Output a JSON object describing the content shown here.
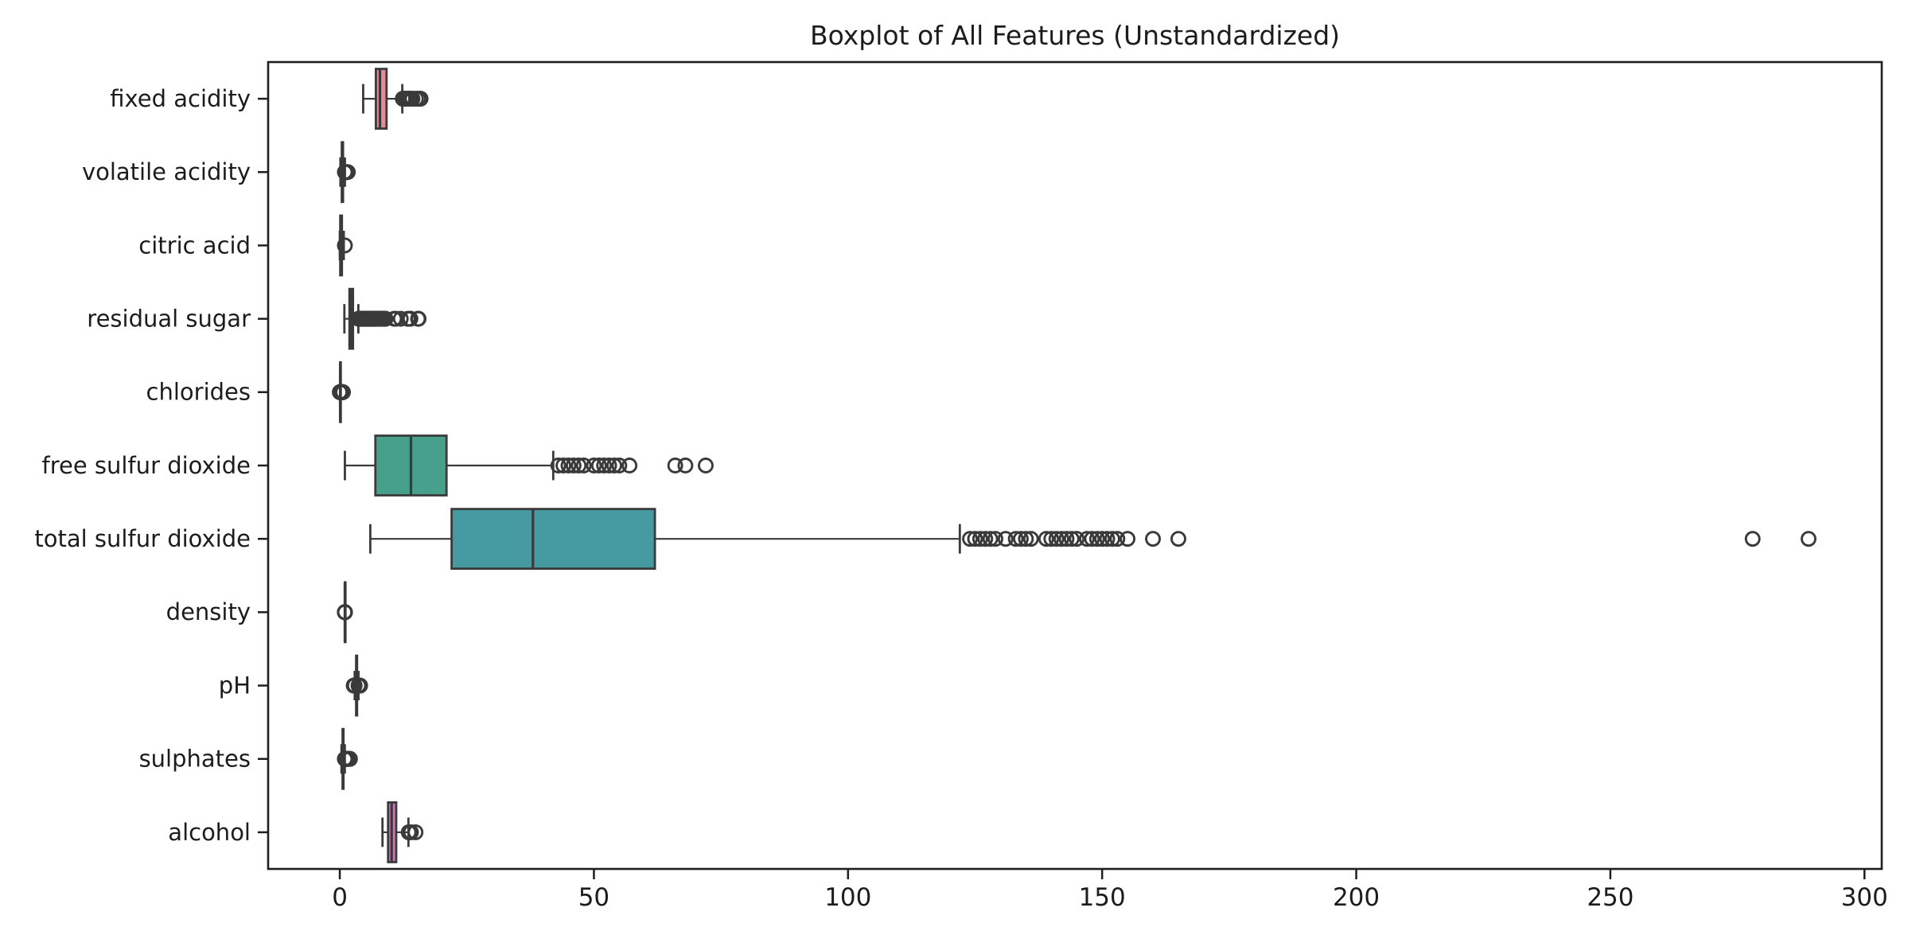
{
  "figure": {
    "background": "#ffffff"
  },
  "chart_data": {
    "type": "boxplot",
    "orientation": "horizontal",
    "title": "Boxplot of All Features (Unstandardized)",
    "xlabel": "",
    "ylabel": "",
    "xlim": [
      -14.1,
      303.4
    ],
    "x_ticks": [
      0,
      50,
      100,
      150,
      200,
      250,
      300
    ],
    "grid": false,
    "legend": "none",
    "edge_color": "#3a3a3a",
    "spine_color": "#1f1f1f",
    "text_color": "#1c1c1c",
    "categories": [
      "fixed acidity",
      "volatile acidity",
      "citric acid",
      "residual sugar",
      "chlorides",
      "free sulfur dioxide",
      "total sulfur dioxide",
      "density",
      "pH",
      "sulphates",
      "alcohol"
    ],
    "boxes": [
      {
        "label": "fixed acidity",
        "color": "#e78a96",
        "whisker_low": 4.6,
        "q1": 7.1,
        "median": 7.9,
        "q3": 9.2,
        "whisker_high": 12.3,
        "outliers": [
          12.4,
          12.45,
          12.5,
          12.6,
          12.7,
          12.8,
          12.9,
          13.0,
          13.1,
          13.2,
          13.3,
          13.4,
          13.5,
          13.7,
          13.8,
          14.0,
          14.3,
          15.0,
          15.5,
          15.6,
          15.9
        ]
      },
      {
        "label": "volatile acidity",
        "color": "#cf9648",
        "whisker_low": 0.12,
        "q1": 0.39,
        "median": 0.52,
        "q3": 0.64,
        "whisker_high": 1.01,
        "outliers": [
          1.02,
          1.025,
          1.035,
          1.04,
          1.07,
          1.09,
          1.115,
          1.13,
          1.18,
          1.185,
          1.24,
          1.33,
          1.58
        ]
      },
      {
        "label": "citric acid",
        "color": "#aaa23f",
        "whisker_low": 0.0,
        "q1": 0.09,
        "median": 0.26,
        "q3": 0.42,
        "whisker_high": 0.79,
        "outliers": [
          1.0
        ]
      },
      {
        "label": "residual sugar",
        "color": "#79ad4e",
        "whisker_low": 0.9,
        "q1": 1.9,
        "median": 2.2,
        "q3": 2.6,
        "whisker_high": 3.65,
        "outliers": [
          3.7,
          3.75,
          3.8,
          3.9,
          4.0,
          4.1,
          4.15,
          4.2,
          4.25,
          4.3,
          4.4,
          4.5,
          4.6,
          4.65,
          4.7,
          4.8,
          4.9,
          5.0,
          5.1,
          5.2,
          5.3,
          5.4,
          5.5,
          5.6,
          5.7,
          5.8,
          5.9,
          6.0,
          6.1,
          6.2,
          6.3,
          6.4,
          6.5,
          6.6,
          6.7,
          6.8,
          6.9,
          7.0,
          7.1,
          7.2,
          7.3,
          7.5,
          7.8,
          7.9,
          8.0,
          8.1,
          8.3,
          8.6,
          8.8,
          8.9,
          9.0,
          10.7,
          11.0,
          12.0,
          13.4,
          13.8,
          13.9,
          15.4,
          15.5
        ]
      },
      {
        "label": "chlorides",
        "color": "#43ad77",
        "whisker_low": 0.041,
        "q1": 0.07,
        "median": 0.079,
        "q3": 0.09,
        "whisker_high": 0.119,
        "outliers": [
          0.012,
          0.034,
          0.038,
          0.039,
          0.121,
          0.122,
          0.125,
          0.128,
          0.132,
          0.135,
          0.14,
          0.145,
          0.15,
          0.157,
          0.165,
          0.17,
          0.178,
          0.185,
          0.194,
          0.2,
          0.205,
          0.213,
          0.226,
          0.235,
          0.241,
          0.25,
          0.263,
          0.27,
          0.28,
          0.29,
          0.3,
          0.31,
          0.32,
          0.332,
          0.337,
          0.343,
          0.358,
          0.36,
          0.369,
          0.387,
          0.391,
          0.401,
          0.413,
          0.415,
          0.422,
          0.43,
          0.44,
          0.45,
          0.46,
          0.467,
          0.47,
          0.5,
          0.61,
          0.611
        ]
      },
      {
        "label": "free sulfur dioxide",
        "color": "#47a08b",
        "whisker_low": 1,
        "q1": 7,
        "median": 14,
        "q3": 21,
        "whisker_high": 42,
        "outliers": [
          43,
          44,
          45,
          46,
          47,
          48,
          50,
          51,
          52,
          53,
          54,
          55,
          57,
          66,
          68,
          72
        ]
      },
      {
        "label": "total sulfur dioxide",
        "color": "#4599a0",
        "whisker_low": 6,
        "q1": 22,
        "median": 38,
        "q3": 62,
        "whisker_high": 122,
        "outliers": [
          124,
          125,
          126,
          127,
          128,
          129,
          131,
          133,
          134,
          135,
          136,
          139,
          140,
          141,
          142,
          143,
          144,
          145,
          147,
          148,
          149,
          150,
          151,
          152,
          153,
          155,
          160,
          165,
          278,
          289
        ]
      },
      {
        "label": "density",
        "color": "#5a9bc9",
        "whisker_low": 0.9924,
        "q1": 0.9956,
        "median": 0.99675,
        "q3": 0.99784,
        "whisker_high": 1.00115,
        "outliers": [
          0.99007,
          0.9902,
          0.99064,
          0.99084,
          1.0014,
          1.0015,
          1.0018,
          1.0021,
          1.0022,
          1.0026,
          1.00289,
          1.00315,
          1.0032,
          1.00369
        ]
      },
      {
        "label": "pH",
        "color": "#8f93dd",
        "whisker_low": 2.93,
        "q1": 3.21,
        "median": 3.31,
        "q3": 3.4,
        "whisker_high": 3.68,
        "outliers": [
          2.74,
          2.86,
          2.87,
          2.88,
          2.89,
          2.9,
          2.92,
          3.69,
          3.7,
          3.71,
          3.72,
          3.74,
          3.75,
          3.78,
          3.85,
          3.9,
          4.01
        ]
      },
      {
        "label": "sulphates",
        "color": "#bd80d1",
        "whisker_low": 0.33,
        "q1": 0.55,
        "median": 0.62,
        "q3": 0.73,
        "whisker_high": 0.99,
        "outliers": [
          1.0,
          1.01,
          1.02,
          1.03,
          1.04,
          1.05,
          1.06,
          1.07,
          1.08,
          1.09,
          1.1,
          1.11,
          1.12,
          1.13,
          1.14,
          1.15,
          1.16,
          1.17,
          1.18,
          1.2,
          1.22,
          1.25,
          1.26,
          1.28,
          1.31,
          1.33,
          1.36,
          1.39,
          1.4,
          1.46,
          1.48,
          1.56,
          1.59,
          1.61,
          1.62,
          1.95,
          1.98,
          2.0
        ]
      },
      {
        "label": "alcohol",
        "color": "#ca77b9",
        "whisker_low": 8.4,
        "q1": 9.5,
        "median": 10.2,
        "q3": 11.1,
        "whisker_high": 13.5,
        "outliers": [
          13.56,
          13.6,
          14.0,
          14.9
        ]
      }
    ]
  }
}
